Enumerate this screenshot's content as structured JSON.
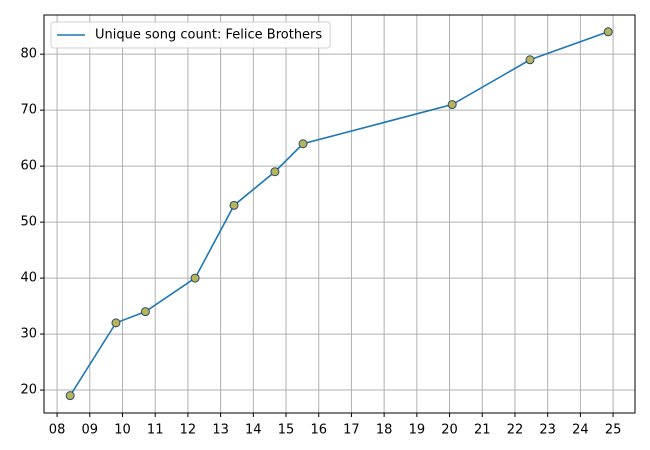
{
  "chart_data": {
    "type": "line",
    "x": [
      8.4,
      9.8,
      10.7,
      12.22,
      13.41,
      14.66,
      15.52,
      20.08,
      22.46,
      24.85
    ],
    "series": [
      {
        "name": "Unique song count: Felice Brothers",
        "color": "#1f77b4",
        "marker_color": "#b9b45a",
        "marker_edge": "#2b4a66",
        "values": [
          19,
          32,
          34,
          40,
          53,
          59,
          64,
          71,
          79,
          84
        ]
      }
    ],
    "xlim": [
      7.6,
      25.67
    ],
    "ylim": [
      15.9,
      87
    ],
    "xticks": [
      {
        "value": 8,
        "label": "08"
      },
      {
        "value": 9,
        "label": "09"
      },
      10,
      11,
      12,
      13,
      14,
      15,
      16,
      17,
      18,
      19,
      20,
      21,
      22,
      23,
      24,
      25
    ],
    "yticks": [
      20,
      30,
      40,
      50,
      60,
      70,
      80
    ],
    "grid": true,
    "legend": "upper-left"
  }
}
